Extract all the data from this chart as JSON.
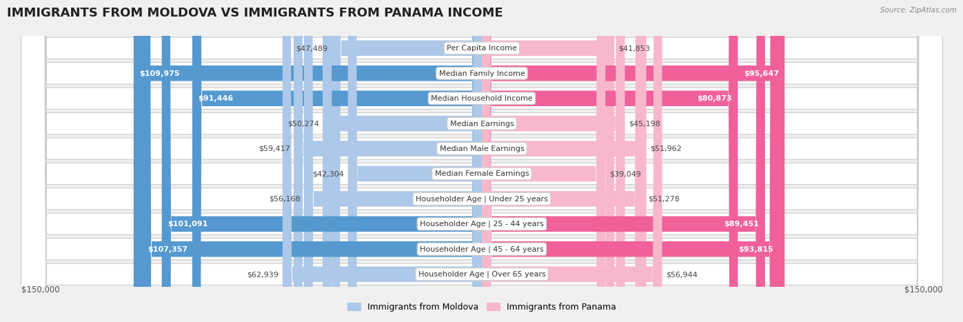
{
  "title": "IMMIGRANTS FROM MOLDOVA VS IMMIGRANTS FROM PANAMA INCOME",
  "source": "Source: ZipAtlas.com",
  "categories": [
    "Per Capita Income",
    "Median Family Income",
    "Median Household Income",
    "Median Earnings",
    "Median Male Earnings",
    "Median Female Earnings",
    "Householder Age | Under 25 years",
    "Householder Age | 25 - 44 years",
    "Householder Age | 45 - 64 years",
    "Householder Age | Over 65 years"
  ],
  "moldova_values": [
    47489,
    109975,
    91446,
    50274,
    59417,
    42304,
    56168,
    101091,
    107357,
    62939
  ],
  "panama_values": [
    41853,
    95647,
    80873,
    45198,
    51962,
    39049,
    51278,
    89451,
    93815,
    56944
  ],
  "moldova_color_light": "#adc8e8",
  "moldova_color_dark": "#5599d0",
  "panama_color_light": "#f7b8cc",
  "panama_color_dark": "#f0609a",
  "max_value": 150000,
  "background_color": "#f0f0f0",
  "row_bg_color": "#e8e8e8",
  "legend_moldova": "Immigrants from Moldova",
  "legend_panama": "Immigrants from Panama",
  "label_threshold": 75000,
  "title_fontsize": 13,
  "label_fontsize": 8,
  "cat_fontsize": 8
}
